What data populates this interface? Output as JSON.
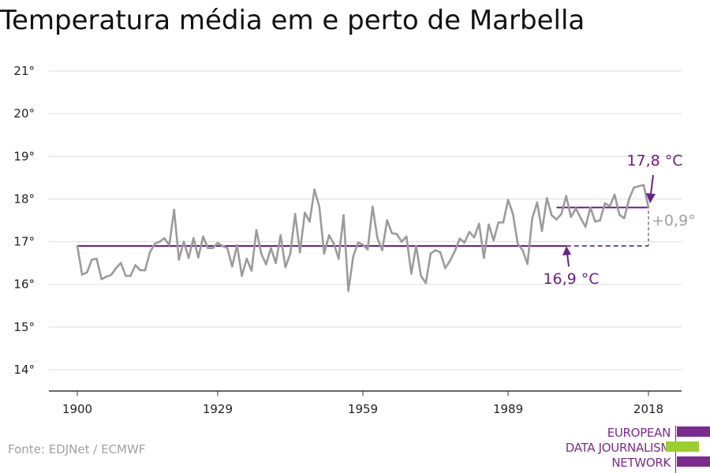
{
  "title": "Temperatura média em e perto de Marbella",
  "source": "Fonte: EDJNet / ECMWF",
  "logo": {
    "lines": [
      "EUROPEAN",
      "DATA JOURNALISM",
      "NETWORK"
    ],
    "colors": [
      "#7b2a8f",
      "#9bcf2e",
      "#7b2a8f"
    ]
  },
  "colors": {
    "series": "#9b9b9b",
    "accent": "#6a1f8a",
    "grid": "#dddddd",
    "text": "#222222"
  },
  "chart_data": {
    "type": "line",
    "title": "Temperatura média em e perto de Marbella",
    "xlabel": "",
    "ylabel": "",
    "xlim": [
      1900,
      2018
    ],
    "ylim": [
      13.5,
      21.3
    ],
    "x_ticks": [
      1900,
      1929,
      1959,
      1989,
      2018
    ],
    "y_ticks": [
      14,
      15,
      16,
      17,
      18,
      19,
      20,
      21
    ],
    "y_tick_labels": [
      "14°",
      "15°",
      "16°",
      "17°",
      "18°",
      "19°",
      "20°",
      "21°"
    ],
    "grid": "horizontal",
    "series": [
      {
        "x": [
          1900,
          1901,
          1902,
          1903,
          1904,
          1905,
          1906,
          1907,
          1908,
          1909,
          1910,
          1911,
          1912,
          1913,
          1914,
          1915,
          1916,
          1917,
          1918,
          1919,
          1920,
          1921,
          1922,
          1923,
          1924,
          1925,
          1926,
          1927,
          1928,
          1929,
          1930,
          1931,
          1932,
          1933,
          1934,
          1935,
          1936,
          1937,
          1938,
          1939,
          1940,
          1941,
          1942,
          1943,
          1944,
          1945,
          1946,
          1947,
          1948,
          1949,
          1950,
          1951,
          1952,
          1953,
          1954,
          1955,
          1956,
          1957,
          1958,
          1959,
          1960,
          1961,
          1962,
          1963,
          1964,
          1965,
          1966,
          1967,
          1968,
          1969,
          1970,
          1971,
          1972,
          1973,
          1974,
          1975,
          1976,
          1977,
          1978,
          1979,
          1980,
          1981,
          1982,
          1983,
          1984,
          1985,
          1986,
          1987,
          1988,
          1989,
          1990,
          1991,
          1992,
          1993,
          1994,
          1995,
          1996,
          1997,
          1998,
          1999,
          2000,
          2001,
          2002,
          2003,
          2004,
          2005,
          2006,
          2007,
          2008,
          2009,
          2010,
          2011,
          2012,
          2013,
          2014,
          2015,
          2016,
          2017,
          2018
        ],
        "values": [
          16.9,
          16.23,
          16.28,
          16.58,
          16.6,
          16.12,
          16.18,
          16.22,
          16.38,
          16.5,
          16.2,
          16.2,
          16.45,
          16.33,
          16.33,
          16.75,
          16.95,
          17.0,
          17.08,
          16.92,
          17.75,
          16.58,
          17.0,
          16.62,
          17.08,
          16.63,
          17.12,
          16.85,
          16.85,
          16.97,
          16.9,
          16.85,
          16.42,
          16.92,
          16.2,
          16.6,
          16.32,
          17.27,
          16.72,
          16.47,
          16.85,
          16.5,
          17.15,
          16.4,
          16.72,
          17.65,
          16.75,
          17.68,
          17.47,
          18.22,
          17.82,
          16.72,
          17.15,
          16.95,
          16.6,
          17.62,
          15.85,
          16.65,
          16.98,
          16.93,
          16.82,
          17.82,
          17.08,
          16.8,
          17.5,
          17.2,
          17.18,
          17.0,
          17.12,
          16.25,
          16.9,
          16.2,
          16.03,
          16.72,
          16.8,
          16.75,
          16.38,
          16.55,
          16.78,
          17.07,
          16.98,
          17.23,
          17.1,
          17.42,
          16.62,
          17.4,
          17.03,
          17.45,
          17.45,
          17.98,
          17.65,
          16.95,
          16.8,
          16.48,
          17.55,
          17.92,
          17.25,
          18.02,
          17.62,
          17.52,
          17.65,
          18.07,
          17.58,
          17.78,
          17.55,
          17.35,
          17.8,
          17.47,
          17.5,
          17.9,
          17.83,
          18.1,
          17.63,
          17.55,
          18.0,
          18.27,
          18.3,
          18.33,
          17.8
        ]
      }
    ],
    "reference_lines": [
      {
        "label": "16,9 °C",
        "value": 16.9
      },
      {
        "label": "17,8 °C",
        "value": 17.8
      }
    ],
    "difference_label": "+0,9°"
  }
}
